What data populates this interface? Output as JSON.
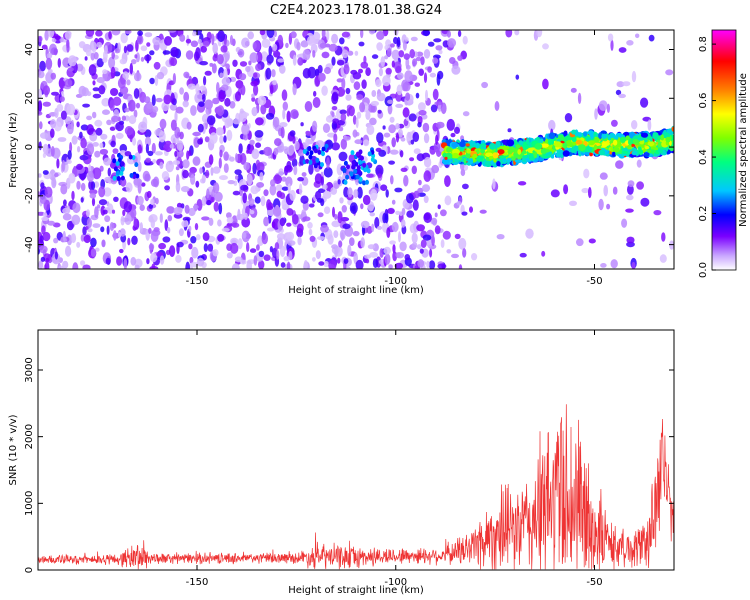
{
  "figure_title": "C2E4.2023.178.01.38.G24",
  "chart_data": [
    {
      "type": "heatmap",
      "title": "",
      "xlabel": "Height of straight line (km)",
      "ylabel": "Frequency (Hz)",
      "xlim": [
        -190,
        -30
      ],
      "ylim": [
        -50,
        48
      ],
      "x_ticks": [
        -150,
        -100,
        -50
      ],
      "y_ticks": [
        -40,
        -20,
        0,
        20,
        40
      ],
      "colorbar": {
        "label": "Normalized spectral amplitude",
        "range": [
          0.0,
          0.85
        ],
        "ticks": [
          0.0,
          0.2,
          0.4,
          0.6,
          0.8
        ],
        "colors": [
          "#ffffff",
          "#6a00ff",
          "#0000ff",
          "#00ffff",
          "#00ff66",
          "#ffff00",
          "#ff8000",
          "#ff0000",
          "#ff00ff"
        ]
      },
      "signal_band": {
        "x_start": -88,
        "x_end": -30,
        "center_freq": [
          [
            -88,
            -2
          ],
          [
            -75,
            -3
          ],
          [
            -65,
            -1
          ],
          [
            -55,
            2
          ],
          [
            -45,
            1
          ],
          [
            -35,
            1
          ],
          [
            -30,
            3
          ]
        ],
        "peak_amplitude": 0.85
      }
    },
    {
      "type": "line",
      "title": "",
      "xlabel": "Height of straight line (km)",
      "ylabel": "SNR (10 * v/v)",
      "xlim": [
        -190,
        -30
      ],
      "ylim": [
        0,
        3600
      ],
      "x_ticks": [
        -150,
        -100,
        -50
      ],
      "y_ticks": [
        0,
        1000,
        2000,
        3000
      ],
      "series_color": "#ee3333",
      "envelope": [
        {
          "x": -190,
          "base": 150,
          "amp": 100
        },
        {
          "x": -170,
          "base": 160,
          "amp": 120
        },
        {
          "x": -165,
          "base": 200,
          "amp": 350
        },
        {
          "x": -160,
          "base": 170,
          "amp": 120
        },
        {
          "x": -125,
          "base": 180,
          "amp": 120
        },
        {
          "x": -120,
          "base": 200,
          "amp": 300
        },
        {
          "x": -110,
          "base": 190,
          "amp": 250
        },
        {
          "x": -100,
          "base": 210,
          "amp": 180
        },
        {
          "x": -88,
          "base": 220,
          "amp": 200
        },
        {
          "x": -82,
          "base": 320,
          "amp": 400
        },
        {
          "x": -75,
          "base": 550,
          "amp": 900
        },
        {
          "x": -68,
          "base": 650,
          "amp": 1000
        },
        {
          "x": -62,
          "base": 900,
          "amp": 1900
        },
        {
          "x": -58,
          "base": 1300,
          "amp": 2200
        },
        {
          "x": -55,
          "base": 1000,
          "amp": 2200
        },
        {
          "x": -50,
          "base": 600,
          "amp": 1100
        },
        {
          "x": -45,
          "base": 350,
          "amp": 500
        },
        {
          "x": -40,
          "base": 300,
          "amp": 400
        },
        {
          "x": -36,
          "base": 500,
          "amp": 800
        },
        {
          "x": -33,
          "base": 1800,
          "amp": 1800
        },
        {
          "x": -31,
          "base": 900,
          "amp": 600
        },
        {
          "x": -30,
          "base": 700,
          "amp": 500
        }
      ]
    }
  ]
}
